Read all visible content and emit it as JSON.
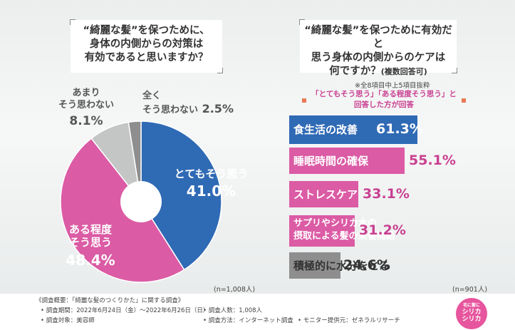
{
  "q1": {
    "line1": "“綺麗な髪”を保つために、",
    "line2": "身体の内側からの対策は",
    "line3": "有効であると思いますか？"
  },
  "q2": {
    "line1": "“綺麗な髪”を保つために有効だと",
    "line2": "思う身体の内側からのケアは",
    "line3": "何ですか？",
    "line3_sub": "(複数回答可)"
  },
  "note_top8": "※全8項目中上5項目抜粋",
  "legend": {
    "line1": "「とてもそう思う」「ある程度そう思う」と",
    "line2": "回答した方が回答"
  },
  "n_left": "(n=1,008人)",
  "n_right": "(n=901人)",
  "pie_labels": {
    "very": {
      "l1": "とてもそう思う",
      "v": "41.0%"
    },
    "some": {
      "l1": "ある程度",
      "l2": "そう思う",
      "v": "48.4%"
    },
    "notmuch": {
      "l1": "あまり",
      "l2": "そう思わない",
      "v": "8.1%"
    },
    "notatall": {
      "l1": "全く",
      "l2": "そう思わない",
      "v": "2.5%"
    }
  },
  "bar_labels": [
    {
      "l1": "食生活の改善",
      "l2": "",
      "v": "61.3%"
    },
    {
      "l1": "睡眠時間の確保",
      "l2": "",
      "v": "55.1%"
    },
    {
      "l1": "ストレスケア",
      "l2": "",
      "v": "33.1%"
    },
    {
      "l1": "サプリやシリカ水の",
      "l2": "摂取による髪の栄養補給",
      "v": "31.2%"
    },
    {
      "l1": "積極的に水分をとる",
      "l2": "",
      "v": "24.6%"
    }
  ],
  "footer": {
    "l1": "《調査概要：「綺麗な髪のつくりかた」に関する調査》",
    "l2a": "• 調査期間：2022年6月24日（金）〜2022年6月26日（日）",
    "l2b": "• 調査人数：1,008人",
    "l3a": "• 調査対象：美容師",
    "l3b": "• 調査方法：インターネット調査",
    "l3c": "• モニター提供元：ゼネラルリサーチ"
  },
  "logo": {
    "l1": "毛に髪に",
    "l2": "シリカ",
    "l3": "シリカ"
  },
  "chart_data": [
    {
      "type": "pie",
      "categories": [
        "とてもそう思う",
        "ある程度そう思う",
        "あまりそう思わない",
        "全くそう思わない"
      ],
      "values": [
        41.0,
        48.4,
        8.1,
        2.5
      ],
      "colors": [
        "#2f6ab5",
        "#db5ba4",
        "#c4c5c5",
        "#8e8e8e"
      ],
      "title": "“綺麗な髪”を保つために、身体の内側からの対策は有効であると思いますか？"
    },
    {
      "type": "bar",
      "orientation": "horizontal",
      "categories": [
        "食生活の改善",
        "睡眠時間の確保",
        "ストレスケア",
        "サプリやシリカ水の摂取による髪の栄養補給",
        "積極的に水分をとる"
      ],
      "values": [
        61.3,
        55.1,
        33.1,
        31.2,
        24.6
      ],
      "colors": [
        "#2f6ab5",
        "#db5ba4",
        "#db5ba4",
        "#db5ba4",
        "#8e8e8e"
      ],
      "title": "“綺麗な髪”を保つために有効だと思う身体の内側からのケアは何ですか？(複数回答可)"
    }
  ]
}
